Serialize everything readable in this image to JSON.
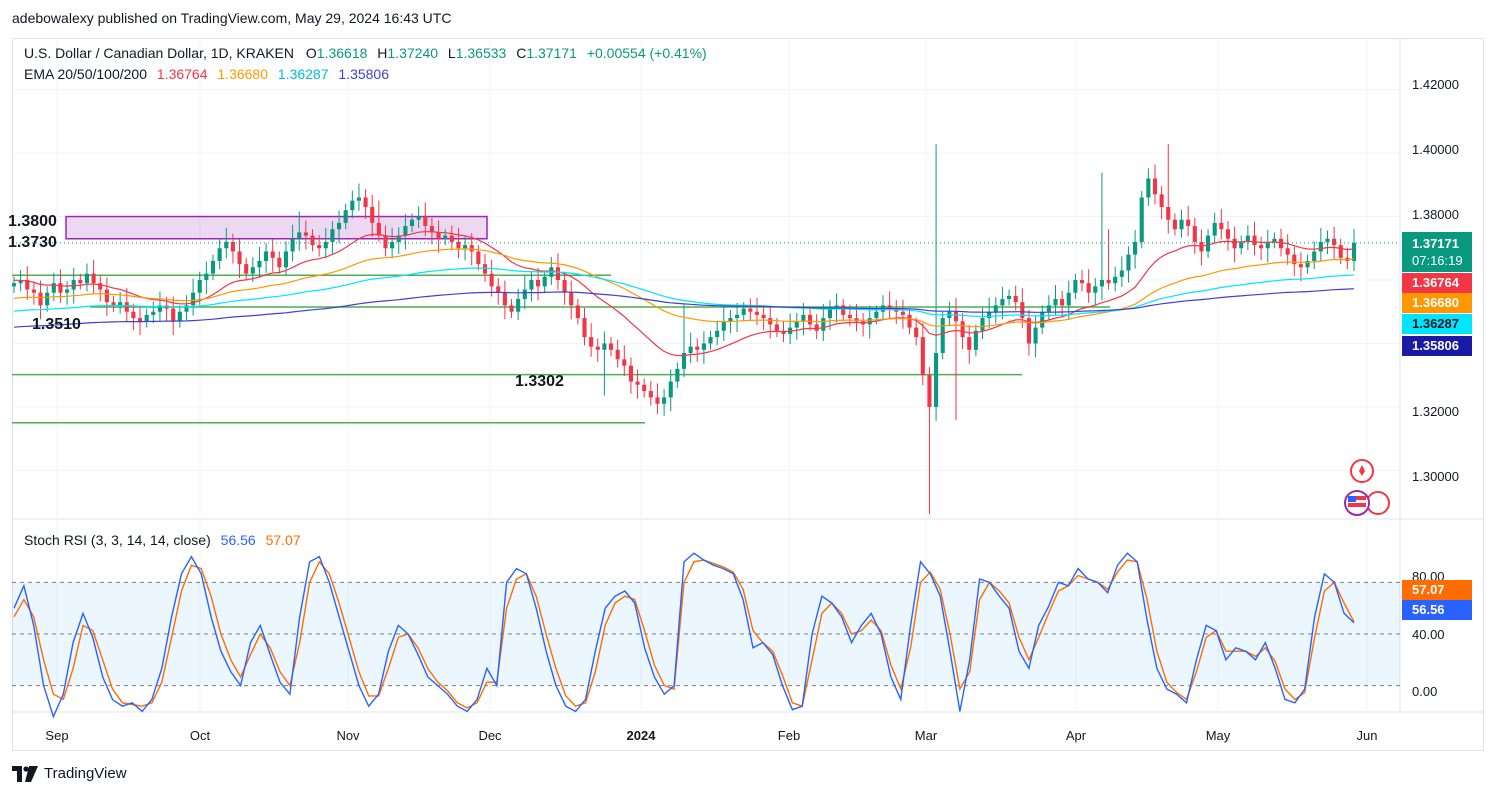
{
  "publisher": "adebowalexy published on TradingView.com, May 29, 2024 16:43 UTC",
  "legend": {
    "symbol": "U.S. Dollar / Canadian Dollar, 1D, KRAKEN",
    "o_label": "O",
    "o": "1.36618",
    "h_label": "H",
    "h": "1.37240",
    "l_label": "L",
    "l": "1.36533",
    "c_label": "C",
    "c": "1.37171",
    "change": "+0.00554 (+0.41%)",
    "ema_title": "EMA 20/50/100/200",
    "ema20": "1.36764",
    "ema50": "1.36680",
    "ema100": "1.36287",
    "ema200": "1.35806"
  },
  "stoch_legend": {
    "title": "Stoch RSI (3, 3, 14, 14, close)",
    "k": "56.56",
    "d": "57.07"
  },
  "price_tags": {
    "last": "1.37171",
    "countdown": "07:16:19",
    "ema20": "1.36764",
    "ema50": "1.36680",
    "ema100": "1.36287",
    "ema200": "1.35806",
    "stoch_d": "57.07",
    "stoch_k": "56.56"
  },
  "level_labels": [
    "1.3800",
    "1.3730",
    "1.3510",
    "1.3302"
  ],
  "colors": {
    "up": "#089981",
    "down": "#f23645",
    "ema20": "#f23645",
    "ema50": "#ff9800",
    "ema100": "#00e5ff",
    "ema200": "#3f3fd6",
    "stoch_k": "#2962ff",
    "stoch_d": "#ff6d00",
    "zone": "#9c27b0",
    "level": "#4caf50"
  },
  "footer": "TradingView",
  "chart_data": [
    {
      "type": "candlestick",
      "title": "U.S. Dollar / Canadian Dollar, 1D, KRAKEN",
      "x_ticks": [
        "Sep",
        "Oct",
        "Nov",
        "Dec",
        "2024",
        "Feb",
        "Mar",
        "Apr",
        "May",
        "Jun"
      ],
      "y_ticks": [
        "1.42000",
        "1.40000",
        "1.38000",
        "1.32000",
        "1.30000"
      ],
      "ylim": [
        1.285,
        1.435
      ],
      "last_price": 1.37171,
      "ohlc_last": {
        "open": 1.36618,
        "high": 1.3724,
        "low": 1.36533,
        "close": 1.37171
      },
      "resistance_zone": [
        1.373,
        1.38
      ],
      "horizontal_levels": [
        1.351,
        1.3302,
        1.315
      ],
      "close_series": [
        1.359,
        1.36,
        1.357,
        1.356,
        1.352,
        1.356,
        1.359,
        1.356,
        1.357,
        1.36,
        1.359,
        1.362,
        1.359,
        1.357,
        1.353,
        1.352,
        1.353,
        1.35,
        1.348,
        1.347,
        1.349,
        1.35,
        1.352,
        1.351,
        1.347,
        1.35,
        1.352,
        1.356,
        1.36,
        1.362,
        1.366,
        1.37,
        1.372,
        1.369,
        1.365,
        1.362,
        1.364,
        1.366,
        1.369,
        1.367,
        1.364,
        1.369,
        1.373,
        1.375,
        1.374,
        1.371,
        1.37,
        1.372,
        1.376,
        1.378,
        1.382,
        1.385,
        1.386,
        1.383,
        1.378,
        1.374,
        1.37,
        1.372,
        1.374,
        1.377,
        1.379,
        1.38,
        1.377,
        1.375,
        1.373,
        1.374,
        1.372,
        1.37,
        1.371,
        1.369,
        1.365,
        1.362,
        1.358,
        1.356,
        1.352,
        1.35,
        1.354,
        1.357,
        1.36,
        1.358,
        1.361,
        1.364,
        1.36,
        1.356,
        1.352,
        1.348,
        1.342,
        1.339,
        1.338,
        1.34,
        1.338,
        1.335,
        1.333,
        1.328,
        1.327,
        1.325,
        1.323,
        1.321,
        1.323,
        1.328,
        1.332,
        1.337,
        1.339,
        1.338,
        1.34,
        1.342,
        1.344,
        1.347,
        1.348,
        1.349,
        1.351,
        1.35,
        1.349,
        1.348,
        1.346,
        1.344,
        1.343,
        1.345,
        1.347,
        1.349,
        1.346,
        1.344,
        1.348,
        1.351,
        1.352,
        1.349,
        1.348,
        1.347,
        1.346,
        1.348,
        1.35,
        1.352,
        1.351,
        1.35,
        1.349,
        1.345,
        1.342,
        1.33,
        1.32,
        1.337,
        1.348,
        1.35,
        1.347,
        1.342,
        1.338,
        1.344,
        1.348,
        1.35,
        1.352,
        1.354,
        1.355,
        1.353,
        1.348,
        1.34,
        1.345,
        1.35,
        1.352,
        1.354,
        1.352,
        1.356,
        1.36,
        1.359,
        1.356,
        1.358,
        1.36,
        1.359,
        1.361,
        1.363,
        1.368,
        1.372,
        1.386,
        1.392,
        1.387,
        1.383,
        1.379,
        1.376,
        1.379,
        1.377,
        1.372,
        1.369,
        1.374,
        1.378,
        1.376,
        1.373,
        1.37,
        1.372,
        1.374,
        1.371,
        1.37,
        1.372,
        1.373,
        1.37,
        1.368,
        1.365,
        1.364,
        1.366,
        1.369,
        1.372,
        1.373,
        1.371,
        1.367,
        1.366,
        1.3717
      ],
      "series": [
        {
          "name": "EMA 20",
          "last": 1.36764
        },
        {
          "name": "EMA 50",
          "last": 1.3668
        },
        {
          "name": "EMA 100",
          "last": 1.36287
        },
        {
          "name": "EMA 200",
          "last": 1.35806
        }
      ]
    },
    {
      "type": "line",
      "title": "Stoch RSI (3, 3, 14, 14, close)",
      "y_ticks": [
        "80.00",
        "40.00",
        "0.00"
      ],
      "ylim": [
        0,
        100
      ],
      "bands": [
        20,
        50,
        80
      ],
      "series": [
        {
          "name": "K",
          "last": 56.56,
          "values": [
            65,
            78,
            55,
            20,
            2,
            15,
            45,
            62,
            48,
            25,
            12,
            8,
            10,
            5,
            12,
            30,
            60,
            85,
            95,
            85,
            60,
            40,
            28,
            20,
            45,
            55,
            38,
            22,
            15,
            60,
            92,
            95,
            80,
            60,
            40,
            20,
            8,
            15,
            40,
            55,
            50,
            38,
            25,
            20,
            15,
            8,
            5,
            12,
            30,
            20,
            80,
            88,
            85,
            65,
            40,
            20,
            8,
            5,
            12,
            40,
            65,
            72,
            75,
            68,
            42,
            25,
            15,
            20,
            92,
            97,
            93,
            90,
            88,
            85,
            70,
            42,
            45,
            38,
            20,
            6,
            8,
            50,
            72,
            68,
            60,
            45,
            55,
            62,
            50,
            25,
            12,
            55,
            92,
            85,
            72,
            40,
            5,
            35,
            82,
            80,
            72,
            65,
            40,
            30,
            55,
            66,
            80,
            78,
            88,
            82,
            80,
            74,
            90,
            97,
            92,
            58,
            30,
            18,
            15,
            10,
            35,
            55,
            52,
            35,
            42,
            40,
            35,
            45,
            30,
            12,
            10,
            18,
            60,
            85,
            80,
            62,
            56.56
          ]
        },
        {
          "name": "D",
          "last": 57.07,
          "values": [
            60,
            70,
            60,
            35,
            15,
            12,
            30,
            55,
            52,
            35,
            18,
            10,
            9,
            8,
            10,
            22,
            48,
            75,
            90,
            88,
            72,
            50,
            35,
            25,
            38,
            50,
            42,
            28,
            20,
            45,
            80,
            92,
            85,
            68,
            48,
            28,
            14,
            14,
            30,
            48,
            50,
            42,
            30,
            22,
            17,
            10,
            7,
            10,
            22,
            22,
            65,
            82,
            85,
            72,
            50,
            30,
            14,
            8,
            10,
            28,
            55,
            68,
            72,
            70,
            52,
            32,
            20,
            18,
            80,
            92,
            93,
            91,
            89,
            86,
            76,
            52,
            45,
            40,
            26,
            10,
            8,
            35,
            62,
            68,
            62,
            50,
            52,
            58,
            52,
            32,
            18,
            42,
            80,
            86,
            76,
            50,
            18,
            28,
            70,
            80,
            75,
            68,
            48,
            35,
            48,
            62,
            75,
            78,
            84,
            82,
            80,
            76,
            86,
            93,
            92,
            70,
            40,
            22,
            16,
            12,
            28,
            48,
            52,
            40,
            40,
            40,
            37,
            42,
            34,
            18,
            12,
            16,
            48,
            75,
            80,
            68,
            57.07
          ]
        }
      ]
    }
  ]
}
